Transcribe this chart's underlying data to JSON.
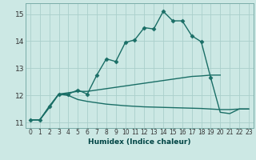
{
  "background_color": "#cce8e4",
  "grid_color": "#aacfcb",
  "line_color": "#1a6e66",
  "line_width": 1.0,
  "marker": "D",
  "marker_size": 2.5,
  "xlabel": "Humidex (Indice chaleur)",
  "ylim": [
    10.8,
    15.4
  ],
  "xlim": [
    -0.5,
    23.5
  ],
  "yticks": [
    11,
    12,
    13,
    14,
    15
  ],
  "xticks": [
    0,
    1,
    2,
    3,
    4,
    5,
    6,
    7,
    8,
    9,
    10,
    11,
    12,
    13,
    14,
    15,
    16,
    17,
    18,
    19,
    20,
    21,
    22,
    23
  ],
  "series": [
    {
      "x": [
        0,
        1,
        2,
        3,
        4,
        5,
        6,
        7,
        8,
        9,
        10,
        11,
        12,
        13,
        14,
        15,
        16,
        17,
        18,
        19
      ],
      "y": [
        11.1,
        11.1,
        11.6,
        12.05,
        12.05,
        12.2,
        12.05,
        12.75,
        13.35,
        13.25,
        13.95,
        14.05,
        14.5,
        14.45,
        15.1,
        14.75,
        14.75,
        14.2,
        13.98,
        12.65
      ],
      "has_markers": true
    },
    {
      "x": [
        0,
        1,
        2,
        3,
        4,
        5,
        6,
        7,
        8,
        9,
        10,
        11,
        12,
        13,
        14,
        15,
        16,
        17,
        18,
        19,
        20
      ],
      "y": [
        11.1,
        11.1,
        11.55,
        12.05,
        12.1,
        12.15,
        12.15,
        12.2,
        12.25,
        12.3,
        12.35,
        12.4,
        12.45,
        12.5,
        12.55,
        12.6,
        12.65,
        12.7,
        12.72,
        12.75,
        12.75
      ],
      "has_markers": false
    },
    {
      "x": [
        0,
        1,
        2,
        3,
        4,
        5,
        6,
        7,
        8,
        9,
        10,
        11,
        12,
        13,
        14,
        15,
        16,
        17,
        18,
        19,
        20,
        21,
        22,
        23
      ],
      "y": [
        11.1,
        11.1,
        11.6,
        12.05,
        12.0,
        11.85,
        11.78,
        11.73,
        11.68,
        11.65,
        11.62,
        11.6,
        11.58,
        11.57,
        11.56,
        11.55,
        11.54,
        11.53,
        11.52,
        11.5,
        11.48,
        11.48,
        11.5,
        11.5
      ],
      "has_markers": false
    },
    {
      "x": [
        19,
        20,
        21,
        22,
        23
      ],
      "y": [
        12.65,
        11.38,
        11.33,
        11.5,
        11.5
      ],
      "has_markers": false
    }
  ]
}
